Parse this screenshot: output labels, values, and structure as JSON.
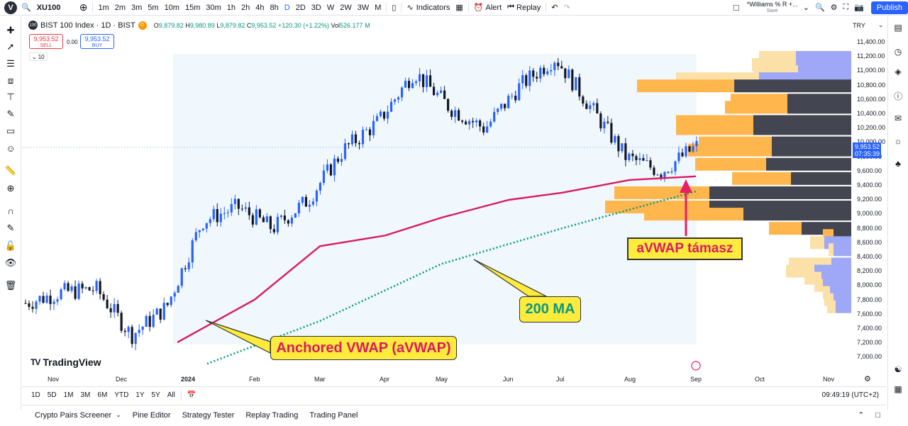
{
  "header": {
    "logo": "V",
    "symbol": "XU100",
    "intervals": [
      "1m",
      "2m",
      "3m",
      "5m",
      "10m",
      "15m",
      "30m",
      "1h",
      "2h",
      "4h",
      "8h",
      "D",
      "2D",
      "3D",
      "W",
      "2W",
      "3W",
      "M"
    ],
    "active_interval": "D",
    "indicators_label": "Indicators",
    "alert_label": "Alert",
    "replay_label": "Replay",
    "layout_name": "*Williams % R +...",
    "layout_sub": "Save",
    "publish_label": "Publish"
  },
  "legend": {
    "badge": "100",
    "title": "BIST 100 Index · 1D · BIST",
    "o_key": "O",
    "o": "9,879.82",
    "h_key": "H",
    "h": "9,980.89",
    "l_key": "L",
    "l": "9,879.82",
    "c_key": "C",
    "c": "9,953.52 +120.30 (+1.22%)",
    "vol_key": "Vol",
    "vol": "526.177 M",
    "sell_price": "9,953.52",
    "sell_label": "SELL",
    "spread": "0.00",
    "buy_price": "9,953.52",
    "buy_label": "BUY",
    "collapse": "10"
  },
  "price_axis": {
    "currency": "TRY",
    "ticks": [
      "11,400.00",
      "11,200.00",
      "11,000.00",
      "10,800.00",
      "10,600.00",
      "10,400.00",
      "10,200.00",
      "10,000.00",
      "9,800.00",
      "9,600.00",
      "9,400.00",
      "9,200.00",
      "9,000.00",
      "8,800.00",
      "8,600.00",
      "8,400.00",
      "8,200.00",
      "8,000.00",
      "7,800.00",
      "7,600.00",
      "7,400.00",
      "7,200.00",
      "7,000.00"
    ],
    "current_price": "9,953.52",
    "countdown": "07:35:39"
  },
  "time_axis": {
    "ticks": [
      "Nov",
      "Dec",
      "2024",
      "Feb",
      "Mar",
      "Apr",
      "May",
      "Jun",
      "Jul",
      "Aug",
      "Sep",
      "Oct",
      "Nov"
    ]
  },
  "annotations": {
    "avwap_label": "Anchored VWAP (aVWAP)",
    "ma_label": "200 MA",
    "support_label": "aVWAP támasz"
  },
  "watermark": "TradingView",
  "bottom": {
    "ranges": [
      "1D",
      "5D",
      "1M",
      "3M",
      "6M",
      "YTD",
      "1Y",
      "5Y",
      "All"
    ],
    "clock": "09:49:19 (UTC+2)"
  },
  "panel": {
    "tabs": [
      "Crypto Pairs Screener",
      "Pine Editor",
      "Strategy Tester",
      "Replay Trading",
      "Trading Panel"
    ]
  },
  "colors": {
    "up": "#2962ff",
    "down": "#131722",
    "avwap": "#d81b60",
    "ma": "#089981",
    "vp_orange": "#ffb74d",
    "vp_dark": "#434651",
    "vp_blue": "#9fa8f6",
    "callout_bg": "#ffeb3b",
    "accent": "#2962ff"
  },
  "chart_data": {
    "type": "candlestick",
    "symbol": "BIST 100 Index",
    "timeframe": "1D",
    "ylim": [
      6900,
      11500
    ],
    "x_ticks": [
      "Nov",
      "Dec",
      "2024",
      "Feb",
      "Mar",
      "Apr",
      "May",
      "Jun",
      "Jul",
      "Aug",
      "Sep",
      "Oct",
      "Nov"
    ],
    "close_path": [
      {
        "t": "Oct 2023",
        "v": 7750
      },
      {
        "t": "Nov 2023",
        "v": 7900
      },
      {
        "t": "Dec 2023",
        "v": 7950
      },
      {
        "t": "late Dec 2023",
        "v": 7300
      },
      {
        "t": "2024",
        "v": 7700
      },
      {
        "t": "Feb 2024",
        "v": 8900
      },
      {
        "t": "Mar 2024",
        "v": 9100
      },
      {
        "t": "mid Mar 2024",
        "v": 8800
      },
      {
        "t": "Apr 2024",
        "v": 9200
      },
      {
        "t": "mid Apr 2024",
        "v": 9900
      },
      {
        "t": "May 2024",
        "v": 10300
      },
      {
        "t": "late May 2024",
        "v": 11000
      },
      {
        "t": "Jun 2024",
        "v": 10500
      },
      {
        "t": "mid Jun 2024",
        "v": 10200
      },
      {
        "t": "Jul 2024",
        "v": 10800
      },
      {
        "t": "mid Jul 2024",
        "v": 11200
      },
      {
        "t": "Aug 2024",
        "v": 10500
      },
      {
        "t": "mid Aug 2024",
        "v": 9800
      },
      {
        "t": "late Aug 2024",
        "v": 9600
      },
      {
        "t": "Sep 2024",
        "v": 9953.52
      }
    ],
    "series": [
      {
        "name": "Anchored VWAP (aVWAP)",
        "points": [
          {
            "t": "late Dec 2023",
            "v": 7200
          },
          {
            "t": "Feb 2024",
            "v": 7800
          },
          {
            "t": "Mar 2024",
            "v": 8550
          },
          {
            "t": "Apr 2024",
            "v": 8700
          },
          {
            "t": "May 2024",
            "v": 8950
          },
          {
            "t": "Jun 2024",
            "v": 9200
          },
          {
            "t": "Jul 2024",
            "v": 9300
          },
          {
            "t": "Aug 2024",
            "v": 9480
          },
          {
            "t": "Sep 2024",
            "v": 9530
          }
        ]
      },
      {
        "name": "200 MA",
        "points": [
          {
            "t": "2024",
            "v": 6900
          },
          {
            "t": "Mar 2024",
            "v": 7500
          },
          {
            "t": "May 2024",
            "v": 8300
          },
          {
            "t": "Jul 2024",
            "v": 8800
          },
          {
            "t": "Sep 2024",
            "v": 9320
          }
        ]
      }
    ]
  }
}
